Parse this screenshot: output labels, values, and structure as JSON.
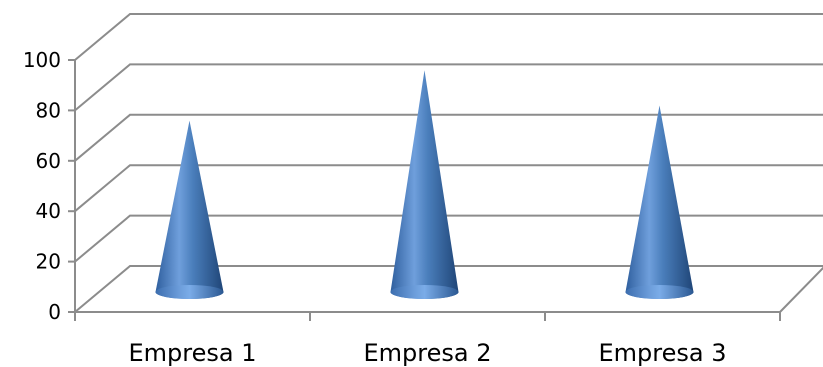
{
  "chart_data": {
    "type": "bar",
    "shape": "cone-3d",
    "categories": [
      "Empresa 1",
      "Empresa 2",
      "Empresa 3"
    ],
    "values": [
      68,
      88,
      74
    ],
    "ylim": [
      0,
      100
    ],
    "yticks": [
      "0",
      "20",
      "40",
      "60",
      "80",
      "100"
    ],
    "grid": true,
    "legend": "none",
    "colors": {
      "cone": "#4a7ebb",
      "grid": "#8c8c8c"
    }
  }
}
